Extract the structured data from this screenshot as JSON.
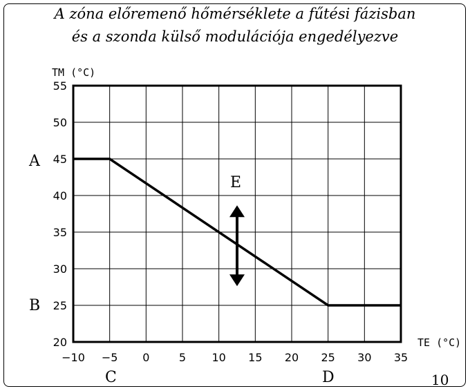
{
  "chart_data": {
    "type": "line",
    "title_line1": "A zóna előremenő hőmérséklete a fűtési fázisban",
    "title_line2": "és a szonda külső modulációja engedélyezve",
    "ylabel": "TM (°C)",
    "xlabel": "TE (°C)",
    "xlim": [
      -10,
      35
    ],
    "ylim": [
      20,
      55
    ],
    "xticks": [
      -10,
      -5,
      0,
      5,
      10,
      15,
      20,
      25,
      30,
      35
    ],
    "yticks": [
      20,
      25,
      30,
      35,
      40,
      45,
      50,
      55
    ],
    "grid": true,
    "series": [
      {
        "x": [
          -10,
          -5,
          25,
          35
        ],
        "y": [
          45,
          45,
          25,
          25
        ]
      }
    ],
    "annotations": {
      "A": "A",
      "B": "B",
      "C": "C",
      "D": "D",
      "E": "E"
    },
    "arrow_center": {
      "x": 12.5,
      "y": 33
    }
  },
  "page_number": "10"
}
